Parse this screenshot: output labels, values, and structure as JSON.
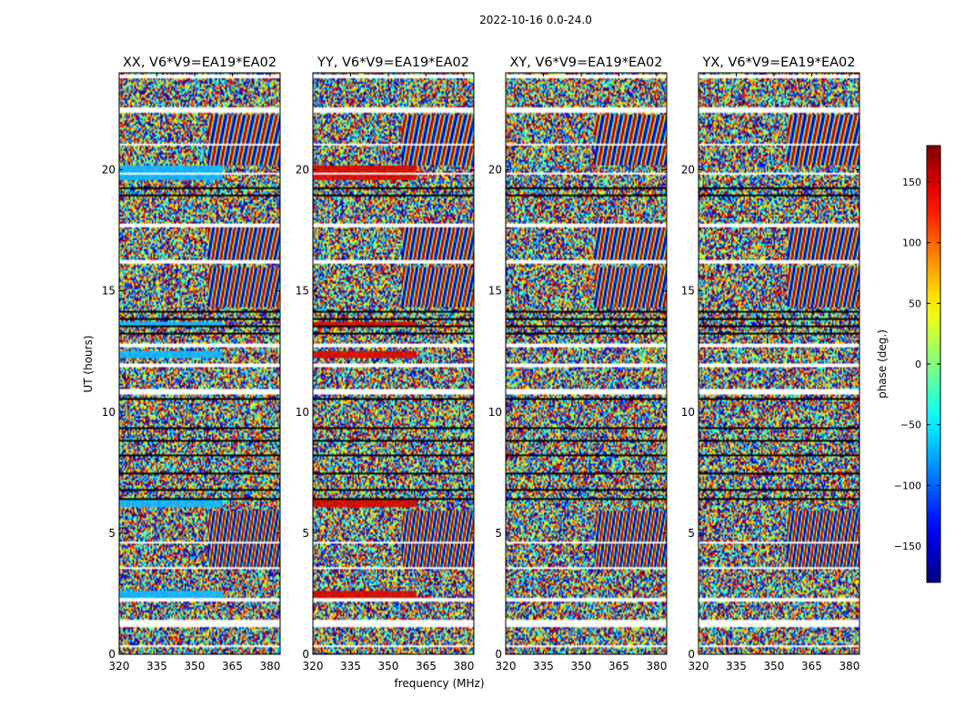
{
  "figure": {
    "suptitle": "2022-10-16 0.0-24.0"
  },
  "chart_data": {
    "type": "heatmap",
    "xlabel": "frequency (MHz)",
    "ylabel": "UT (hours)",
    "xlim": [
      320,
      384
    ],
    "ylim": [
      0,
      24
    ],
    "x_ticks": [
      320,
      335,
      350,
      365,
      380
    ],
    "y_ticks": [
      0,
      5,
      10,
      15,
      20
    ],
    "panels": [
      {
        "title": "XX, V6*V9=EA19*EA02",
        "flag_color": "#19b4ff"
      },
      {
        "title": "YY, V6*V9=EA19*EA02",
        "flag_color": "#d21400"
      },
      {
        "title": "XY, V6*V9=EA19*EA02",
        "flag_color": null
      },
      {
        "title": "YX, V6*V9=EA19*EA02",
        "flag_color": null
      }
    ],
    "colorbar": {
      "label": "phase (deg.)",
      "range": [
        -180,
        180
      ],
      "ticks": [
        150,
        100,
        50,
        0,
        -50,
        -100,
        -150
      ],
      "tick_labels": [
        "150",
        "100",
        "50",
        "0",
        "−50",
        "−100",
        "−150"
      ],
      "colormap": "jet"
    },
    "gap_bands_hours": [
      [
        23.75,
        23.95
      ],
      [
        22.35,
        22.55
      ],
      [
        21.0,
        21.1
      ],
      [
        19.8,
        19.9
      ],
      [
        17.65,
        17.75
      ],
      [
        16.1,
        16.25
      ],
      [
        12.7,
        12.8
      ],
      [
        11.85,
        12.0
      ],
      [
        10.75,
        10.95
      ],
      [
        4.55,
        4.65
      ],
      [
        3.5,
        3.6
      ],
      [
        2.2,
        2.3
      ],
      [
        1.1,
        1.45
      ],
      [
        0.3,
        0.4
      ]
    ],
    "dark_bands_hours": [
      [
        14.1,
        14.2
      ],
      [
        13.8,
        13.85
      ],
      [
        13.5,
        13.55
      ],
      [
        13.2,
        13.25
      ],
      [
        12.95,
        13.0
      ],
      [
        10.5,
        10.6
      ],
      [
        9.3,
        9.35
      ],
      [
        8.8,
        8.85
      ],
      [
        8.2,
        8.25
      ],
      [
        7.45,
        7.5
      ],
      [
        6.75,
        6.8
      ],
      [
        6.4,
        6.45
      ],
      [
        5.9,
        5.95
      ],
      [
        18.9,
        18.95
      ],
      [
        19.2,
        19.25
      ]
    ],
    "flagged_solid_bands_hours": [
      [
        19.6,
        20.2
      ],
      [
        13.55,
        13.7
      ],
      [
        12.2,
        12.5
      ],
      [
        6.05,
        6.35
      ],
      [
        2.35,
        2.6
      ]
    ]
  }
}
